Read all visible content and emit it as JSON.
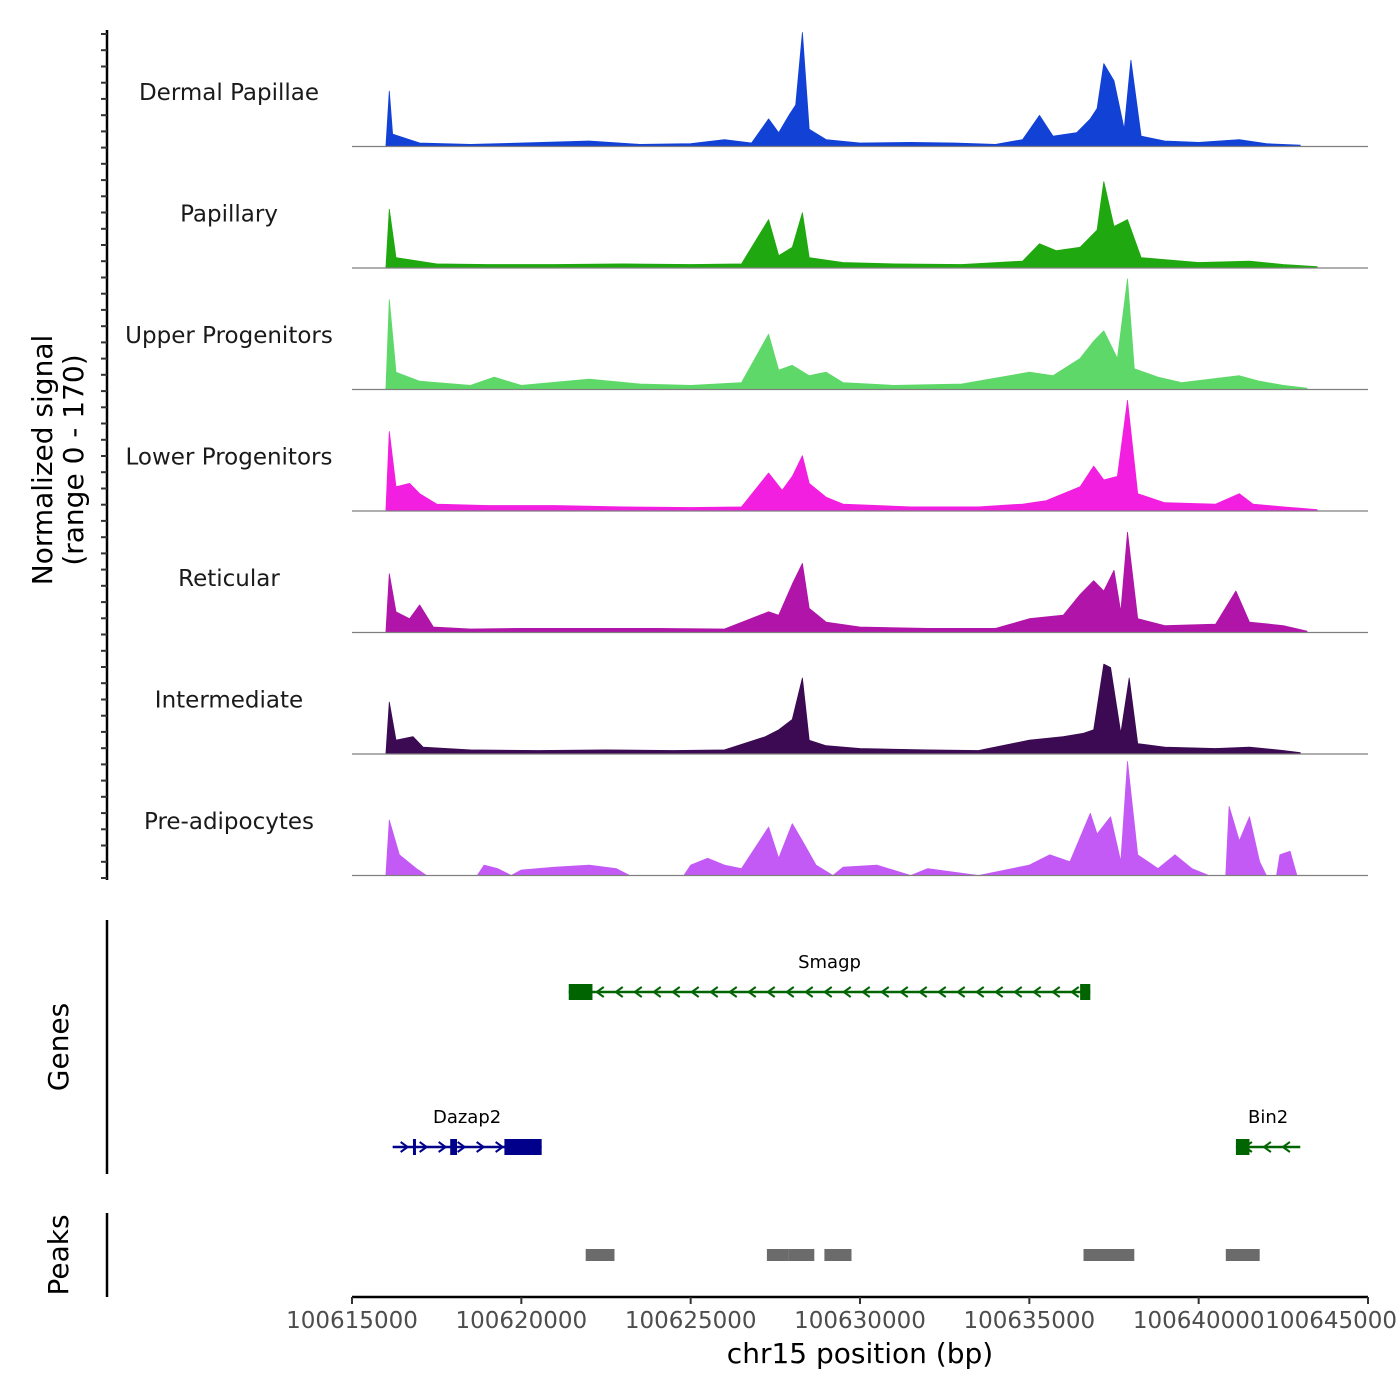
{
  "chart_data": {
    "type": "area",
    "title": "",
    "xlabel": "chr15 position (bp)",
    "ylabel_line1": "Normalized signal",
    "ylabel_line2": "(range 0 - 170)",
    "y_range": [
      0,
      170
    ],
    "xlim": [
      100615000,
      100645000
    ],
    "x_ticks": [
      100615000,
      100620000,
      100625000,
      100630000,
      100635000,
      100640000,
      100645000
    ],
    "x_tick_labels": [
      "100615000",
      "100620000",
      "100625000",
      "100630000",
      "100635000",
      "100640000",
      "100645000"
    ],
    "series": [
      {
        "name": "Dermal Papillae",
        "color": "#1241d6",
        "points": [
          [
            100616000,
            0
          ],
          [
            100616100,
            80
          ],
          [
            100616200,
            18
          ],
          [
            100617000,
            5
          ],
          [
            100618500,
            3
          ],
          [
            100620000,
            5
          ],
          [
            100622000,
            8
          ],
          [
            100623500,
            3
          ],
          [
            100625000,
            4
          ],
          [
            100626000,
            10
          ],
          [
            100626800,
            5
          ],
          [
            100627300,
            40
          ],
          [
            100627600,
            20
          ],
          [
            100627900,
            45
          ],
          [
            100628100,
            60
          ],
          [
            100628300,
            165
          ],
          [
            100628500,
            25
          ],
          [
            100629000,
            10
          ],
          [
            100630000,
            5
          ],
          [
            100631500,
            6
          ],
          [
            100632800,
            5
          ],
          [
            100634000,
            3
          ],
          [
            100634800,
            10
          ],
          [
            100635300,
            45
          ],
          [
            100635700,
            15
          ],
          [
            100636400,
            20
          ],
          [
            100636800,
            40
          ],
          [
            100637000,
            55
          ],
          [
            100637200,
            120
          ],
          [
            100637500,
            95
          ],
          [
            100637800,
            25
          ],
          [
            100638000,
            125
          ],
          [
            100638300,
            15
          ],
          [
            100639000,
            8
          ],
          [
            100640000,
            6
          ],
          [
            100641200,
            10
          ],
          [
            100642000,
            4
          ],
          [
            100643000,
            2
          ]
        ]
      },
      {
        "name": "Papillary",
        "color": "#1fa80f",
        "points": [
          [
            100616000,
            0
          ],
          [
            100616100,
            85
          ],
          [
            100616300,
            15
          ],
          [
            100617500,
            6
          ],
          [
            100619000,
            5
          ],
          [
            100621000,
            5
          ],
          [
            100623000,
            6
          ],
          [
            100625000,
            5
          ],
          [
            100626500,
            6
          ],
          [
            100627300,
            70
          ],
          [
            100627600,
            18
          ],
          [
            100628000,
            30
          ],
          [
            100628300,
            80
          ],
          [
            100628500,
            15
          ],
          [
            100629500,
            8
          ],
          [
            100631000,
            6
          ],
          [
            100633000,
            5
          ],
          [
            100634800,
            10
          ],
          [
            100635300,
            35
          ],
          [
            100635800,
            25
          ],
          [
            100636500,
            30
          ],
          [
            100637000,
            55
          ],
          [
            100637200,
            125
          ],
          [
            100637500,
            60
          ],
          [
            100637900,
            70
          ],
          [
            100638300,
            15
          ],
          [
            100639000,
            12
          ],
          [
            100640000,
            8
          ],
          [
            100641500,
            10
          ],
          [
            100642500,
            5
          ],
          [
            100643500,
            2
          ]
        ]
      },
      {
        "name": "Upper Progenitors",
        "color": "#5fd86a",
        "points": [
          [
            100616000,
            0
          ],
          [
            100616100,
            130
          ],
          [
            100616300,
            25
          ],
          [
            100617000,
            12
          ],
          [
            100618500,
            6
          ],
          [
            100619200,
            18
          ],
          [
            100620000,
            6
          ],
          [
            100622000,
            15
          ],
          [
            100623500,
            8
          ],
          [
            100625000,
            6
          ],
          [
            100626500,
            10
          ],
          [
            100627300,
            80
          ],
          [
            100627600,
            28
          ],
          [
            100628000,
            35
          ],
          [
            100628500,
            20
          ],
          [
            100629000,
            25
          ],
          [
            100629500,
            10
          ],
          [
            100631000,
            6
          ],
          [
            100633000,
            8
          ],
          [
            100635000,
            25
          ],
          [
            100635700,
            20
          ],
          [
            100636500,
            45
          ],
          [
            100636900,
            70
          ],
          [
            100637200,
            85
          ],
          [
            100637600,
            45
          ],
          [
            100637900,
            160
          ],
          [
            100638100,
            30
          ],
          [
            100638800,
            18
          ],
          [
            100639500,
            10
          ],
          [
            100641200,
            20
          ],
          [
            100641800,
            12
          ],
          [
            100642500,
            6
          ],
          [
            100643200,
            2
          ]
        ]
      },
      {
        "name": "Lower Progenitors",
        "color": "#f21ee0",
        "points": [
          [
            100616000,
            0
          ],
          [
            100616100,
            115
          ],
          [
            100616300,
            35
          ],
          [
            100616700,
            40
          ],
          [
            100617000,
            25
          ],
          [
            100617500,
            10
          ],
          [
            100619000,
            8
          ],
          [
            100621000,
            8
          ],
          [
            100623000,
            6
          ],
          [
            100625000,
            5
          ],
          [
            100626500,
            6
          ],
          [
            100627300,
            55
          ],
          [
            100627700,
            30
          ],
          [
            100628000,
            50
          ],
          [
            100628300,
            80
          ],
          [
            100628500,
            40
          ],
          [
            100629000,
            20
          ],
          [
            100629500,
            10
          ],
          [
            100631500,
            6
          ],
          [
            100633500,
            6
          ],
          [
            100634800,
            10
          ],
          [
            100635500,
            15
          ],
          [
            100636500,
            35
          ],
          [
            100636900,
            65
          ],
          [
            100637200,
            45
          ],
          [
            100637600,
            50
          ],
          [
            100637900,
            160
          ],
          [
            100638200,
            25
          ],
          [
            100639000,
            12
          ],
          [
            100640500,
            10
          ],
          [
            100641200,
            25
          ],
          [
            100641600,
            10
          ],
          [
            100642500,
            6
          ],
          [
            100643500,
            2
          ]
        ]
      },
      {
        "name": "Reticular",
        "color": "#b014a8",
        "points": [
          [
            100616000,
            0
          ],
          [
            100616100,
            85
          ],
          [
            100616300,
            30
          ],
          [
            100616700,
            20
          ],
          [
            100617000,
            40
          ],
          [
            100617400,
            8
          ],
          [
            100618500,
            5
          ],
          [
            100620000,
            6
          ],
          [
            100622000,
            6
          ],
          [
            100624000,
            6
          ],
          [
            100626000,
            5
          ],
          [
            100627300,
            30
          ],
          [
            100627600,
            25
          ],
          [
            100628000,
            70
          ],
          [
            100628300,
            100
          ],
          [
            100628500,
            35
          ],
          [
            100629000,
            15
          ],
          [
            100630000,
            8
          ],
          [
            100632000,
            6
          ],
          [
            100634000,
            6
          ],
          [
            100635000,
            20
          ],
          [
            100636000,
            25
          ],
          [
            100636500,
            55
          ],
          [
            100636900,
            75
          ],
          [
            100637200,
            60
          ],
          [
            100637500,
            90
          ],
          [
            100637700,
            30
          ],
          [
            100637900,
            145
          ],
          [
            100638200,
            20
          ],
          [
            100639000,
            10
          ],
          [
            100640500,
            12
          ],
          [
            100641100,
            60
          ],
          [
            100641500,
            15
          ],
          [
            100642500,
            10
          ],
          [
            100643200,
            2
          ]
        ]
      },
      {
        "name": "Intermediate",
        "color": "#3b0a52",
        "points": [
          [
            100616000,
            0
          ],
          [
            100616100,
            75
          ],
          [
            100616300,
            20
          ],
          [
            100616800,
            25
          ],
          [
            100617100,
            10
          ],
          [
            100618500,
            6
          ],
          [
            100620500,
            5
          ],
          [
            100622500,
            6
          ],
          [
            100624500,
            5
          ],
          [
            100626000,
            6
          ],
          [
            100627200,
            25
          ],
          [
            100627600,
            35
          ],
          [
            100628000,
            50
          ],
          [
            100628300,
            110
          ],
          [
            100628500,
            20
          ],
          [
            100629000,
            12
          ],
          [
            100630000,
            8
          ],
          [
            100632000,
            6
          ],
          [
            100633500,
            5
          ],
          [
            100635000,
            20
          ],
          [
            100636000,
            25
          ],
          [
            100636600,
            30
          ],
          [
            100636900,
            35
          ],
          [
            100637200,
            130
          ],
          [
            100637400,
            125
          ],
          [
            100637700,
            30
          ],
          [
            100637950,
            110
          ],
          [
            100638200,
            15
          ],
          [
            100639000,
            10
          ],
          [
            100640500,
            8
          ],
          [
            100641500,
            10
          ],
          [
            100642500,
            5
          ],
          [
            100643000,
            2
          ]
        ]
      },
      {
        "name": "Pre-adipocytes",
        "color": "#c35af5",
        "points": [
          [
            100616000,
            0
          ],
          [
            100616100,
            80
          ],
          [
            100616400,
            30
          ],
          [
            100616900,
            10
          ],
          [
            100617200,
            0
          ],
          [
            100618700,
            0
          ],
          [
            100618900,
            15
          ],
          [
            100619300,
            10
          ],
          [
            100619700,
            0
          ],
          [
            100620000,
            8
          ],
          [
            100621000,
            12
          ],
          [
            100622000,
            15
          ],
          [
            100622800,
            10
          ],
          [
            100623200,
            0
          ],
          [
            100624800,
            0
          ],
          [
            100625000,
            15
          ],
          [
            100625500,
            25
          ],
          [
            100626000,
            15
          ],
          [
            100626500,
            10
          ],
          [
            100627300,
            70
          ],
          [
            100627600,
            25
          ],
          [
            100628000,
            75
          ],
          [
            100628300,
            50
          ],
          [
            100628700,
            15
          ],
          [
            100629200,
            0
          ],
          [
            100629500,
            12
          ],
          [
            100630500,
            15
          ],
          [
            100631500,
            0
          ],
          [
            100632000,
            10
          ],
          [
            100633500,
            0
          ],
          [
            100635000,
            15
          ],
          [
            100635600,
            30
          ],
          [
            100636200,
            20
          ],
          [
            100636800,
            90
          ],
          [
            100637000,
            60
          ],
          [
            100637400,
            85
          ],
          [
            100637700,
            20
          ],
          [
            100637900,
            165
          ],
          [
            100638200,
            30
          ],
          [
            100638800,
            10
          ],
          [
            100639300,
            30
          ],
          [
            100639800,
            10
          ],
          [
            100640300,
            0
          ],
          [
            100640800,
            0
          ],
          [
            100640900,
            100
          ],
          [
            100641200,
            50
          ],
          [
            100641500,
            85
          ],
          [
            100641800,
            20
          ],
          [
            100642000,
            0
          ],
          [
            100642300,
            0
          ],
          [
            100642400,
            30
          ],
          [
            100642700,
            35
          ],
          [
            100642900,
            0
          ],
          [
            100643200,
            0
          ]
        ]
      }
    ],
    "genes_track_label": "Genes",
    "genes": [
      {
        "name": "Smagp",
        "start": 100621400,
        "end": 100636800,
        "strand": "-",
        "color": "#006400",
        "row": 1,
        "exons": [
          [
            100621400,
            100622100
          ],
          [
            100636500,
            100636800
          ]
        ]
      },
      {
        "name": "Dazap2",
        "start": 100616200,
        "end": 100620600,
        "strand": "+",
        "color": "#00008b",
        "row": 2,
        "exons": [
          [
            100616800,
            100616850
          ],
          [
            100617900,
            100618100
          ],
          [
            100619500,
            100620600
          ]
        ]
      },
      {
        "name": "Bin2",
        "start": 100641100,
        "end": 100643000,
        "strand": "-",
        "color": "#006400",
        "row": 2,
        "exons": [
          [
            100641100,
            100641500
          ]
        ]
      }
    ],
    "peaks_track_label": "Peaks",
    "peaks": [
      [
        100621900,
        100622750
      ],
      [
        100627250,
        100627900
      ],
      [
        100627900,
        100628650
      ],
      [
        100628950,
        100629750
      ],
      [
        100636600,
        100638100
      ],
      [
        100640800,
        100641800
      ]
    ]
  }
}
